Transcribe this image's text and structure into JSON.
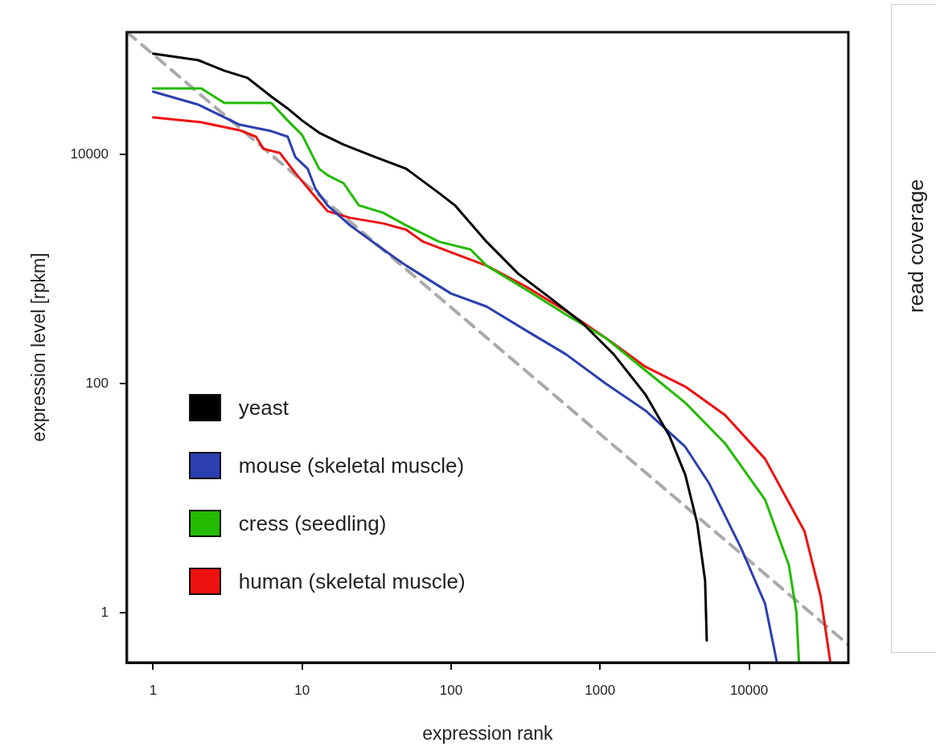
{
  "chart_data": [
    {
      "type": "line",
      "xlabel": "expression rank",
      "ylabel": "expression level [rpkm]",
      "log": "xy",
      "xlim": [
        0.667,
        46400
      ],
      "ylim": [
        0.366,
        117000
      ],
      "xticks": [
        1,
        10,
        100,
        1000,
        10000
      ],
      "yticks": [
        1,
        100,
        10000
      ],
      "grid": false,
      "legend": "left",
      "marker": "none",
      "line_style": "solid",
      "series": [
        {
          "name": "yeast",
          "color": "#000000",
          "x": [
            1,
            2,
            3,
            4.3,
            6.2,
            8,
            10,
            13,
            19,
            31,
            50,
            83,
            106,
            173,
            282,
            461,
            755,
            1234,
            2018,
            2917,
            3730,
            4490,
            5070,
            5200
          ],
          "values": [
            76000,
            66700,
            54000,
            46700,
            32100,
            25200,
            19800,
            15500,
            12200,
            9500,
            7500,
            4600,
            3600,
            1730,
            910,
            560,
            340,
            180,
            80,
            35,
            16,
            6,
            1.9,
            0.57
          ]
        },
        {
          "name": "mouse (skeletal muscle)",
          "color": "#2b3fb0",
          "x": [
            1,
            2,
            3.8,
            6.2,
            8,
            9,
            10.9,
            12.3,
            14.8,
            21,
            35,
            50,
            100,
            173,
            319,
            590,
            1090,
            2018,
            3730,
            5400,
            8800,
            12800,
            15300
          ],
          "values": [
            35400,
            27300,
            18200,
            16000,
            14300,
            9500,
            7500,
            5000,
            3600,
            2400,
            1480,
            1070,
            610,
            470,
            290,
            180,
            100,
            58,
            28,
            13.4,
            3.7,
            1.2,
            0.38
          ]
        },
        {
          "name": "cress (seedling)",
          "color": "#22bb00",
          "x": [
            1,
            2.1,
            3,
            4.3,
            6.2,
            8,
            10,
            13,
            14.8,
            19,
            24,
            35,
            50,
            83,
            135,
            173,
            319,
            590,
            1090,
            2018,
            3730,
            6900,
            12800,
            18500,
            20800,
            21600
          ],
          "values": [
            37800,
            37800,
            28200,
            28200,
            28200,
            19800,
            14800,
            7500,
            6600,
            5600,
            3600,
            3100,
            2400,
            1730,
            1480,
            1070,
            660,
            400,
            250,
            130,
            68,
            30,
            9.7,
            2.6,
            1,
            0.38
          ]
        },
        {
          "name": "human (skeletal muscle)",
          "color": "#ee1111",
          "x": [
            1,
            2.1,
            3.8,
            4.9,
            5.5,
            7.1,
            9,
            11.5,
            14.8,
            21,
            35,
            50,
            65,
            106,
            173,
            319,
            590,
            1090,
            2018,
            3730,
            6900,
            12800,
            23600,
            30200,
            35000
          ],
          "values": [
            21100,
            19100,
            16300,
            14300,
            11200,
            10300,
            6900,
            4700,
            3200,
            2800,
            2500,
            2200,
            1730,
            1360,
            1070,
            700,
            430,
            250,
            140,
            94,
            53,
            22,
            5.1,
            1.4,
            0.38
          ]
        },
        {
          "color": "#aaaaaa",
          "line_style": "dashed",
          "x": [
            0.667,
            46400
          ],
          "values": [
            117000,
            0.523
          ]
        }
      ]
    },
    {
      "type": "other",
      "ylabel": "read coverage"
    }
  ]
}
